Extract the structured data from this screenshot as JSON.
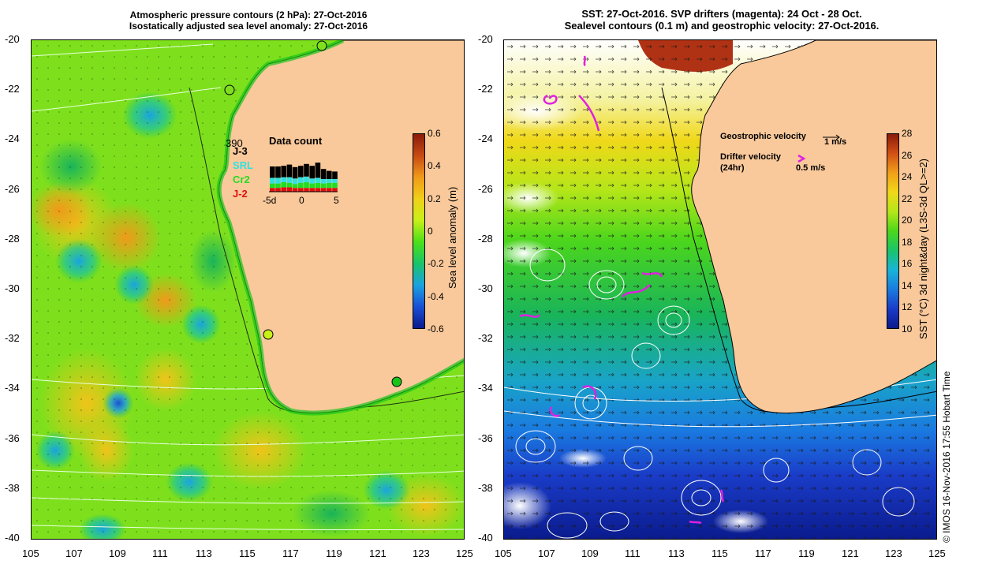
{
  "left": {
    "title_line1": "Atmospheric pressure contours (2 hPa): 27-Oct-2016",
    "title_line2": "Isostatically adjusted sea level anomaly: 27-Oct-2016",
    "colorbar": {
      "title": "Sea level anomaly (m)",
      "ticks": [
        "0.6",
        "0.4",
        "0.2",
        "0",
        "-0.2",
        "-0.4",
        "-0.6"
      ],
      "colors": [
        "#0a1a8c",
        "#1a4fd6",
        "#1aa3e0",
        "#19c46a",
        "#4ce019",
        "#c8f019",
        "#f0d019",
        "#f09a19",
        "#c84a14",
        "#8a1a0a"
      ]
    },
    "data_count": {
      "title": "Data count",
      "top_value": "390",
      "legend": [
        {
          "label": "J-3",
          "color": "#000000"
        },
        {
          "label": "SRL",
          "color": "#33e0e0"
        },
        {
          "label": "Cr2",
          "color": "#22dd22"
        },
        {
          "label": "J-2",
          "color": "#dd1111"
        }
      ],
      "xticks": [
        "-5d",
        "0",
        "5"
      ]
    }
  },
  "right": {
    "title_line1": "SST: 27-Oct-2016. SVP drifters (magenta): 24 Oct - 28 Oct.",
    "title_line2": "Sealevel contours (0.1 m) and geostrophic velocity: 27-Oct-2016.",
    "colorbar": {
      "title": "SST (°C) 3d night&day (L3S-3d QL>=2)",
      "ticks": [
        "28",
        "26",
        "24",
        "22",
        "20",
        "18",
        "16",
        "14",
        "12",
        "10"
      ],
      "colors": [
        "#0a1a8c",
        "#1a3cc8",
        "#1a7ae0",
        "#19b4d8",
        "#19c46a",
        "#4cd61c",
        "#b4e619",
        "#f0d819",
        "#f0a019",
        "#d25014",
        "#8a1a0a"
      ]
    },
    "geo_label": "Geostrophic velocity",
    "geo_scale": "1 m/s",
    "drifter_label": "Drifter velocity",
    "drifter_sub": "(24hr)",
    "drifter_scale": "0.5 m/s"
  },
  "y_ticks": [
    "-20",
    "-22",
    "-24",
    "-26",
    "-28",
    "-30",
    "-32",
    "-34",
    "-36",
    "-38",
    "-40"
  ],
  "x_ticks": [
    "105",
    "107",
    "109",
    "111",
    "113",
    "115",
    "117",
    "119",
    "121",
    "123",
    "125"
  ],
  "credit": "© IMOS 16-Nov-2016 17:55 Hobart Time",
  "colors": {
    "land": "#f9c99b",
    "coast": "#000000"
  }
}
